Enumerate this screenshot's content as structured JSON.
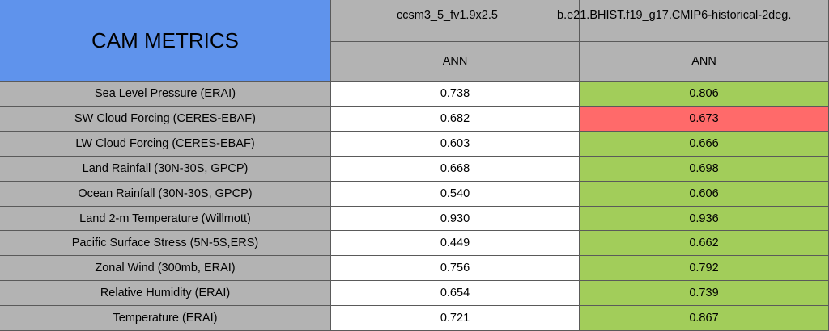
{
  "table": {
    "title": "CAM METRICS",
    "columns": [
      "ccsm3_5_fv1.9x2.5",
      "b.e21.BHIST.f19_g17.CMIP6-historical-2deg."
    ],
    "seasons": [
      "ANN",
      "ANN"
    ],
    "rows": [
      [
        "Sea Level Pressure (ERAI)",
        "0.738",
        "0.806"
      ],
      [
        "SW Cloud Forcing (CERES-EBAF)",
        "0.682",
        "0.673"
      ],
      [
        "LW Cloud Forcing (CERES-EBAF)",
        "0.603",
        "0.666"
      ],
      [
        "Land Rainfall (30N-30S, GPCP)",
        "0.668",
        "0.698"
      ],
      [
        "Ocean Rainfall (30N-30S, GPCP)",
        "0.540",
        "0.606"
      ],
      [
        "Land 2-m Temperature (Willmott)",
        "0.930",
        "0.936"
      ],
      [
        "Pacific Surface Stress (5N-5S,ERS)",
        "0.449",
        "0.662"
      ],
      [
        "Zonal Wind (300mb, ERAI)",
        "0.756",
        "0.792"
      ],
      [
        "Relative Humidity (ERAI)",
        "0.654",
        "0.739"
      ],
      [
        "Temperature (ERAI)",
        "0.721",
        "0.867"
      ]
    ],
    "last_column_colors": [
      "#a2cd5a",
      "#ff6a6a",
      "#a2cd5a",
      "#a2cd5a",
      "#a2cd5a",
      "#a2cd5a",
      "#a2cd5a",
      "#a2cd5a",
      "#a2cd5a",
      "#a2cd5a"
    ]
  }
}
